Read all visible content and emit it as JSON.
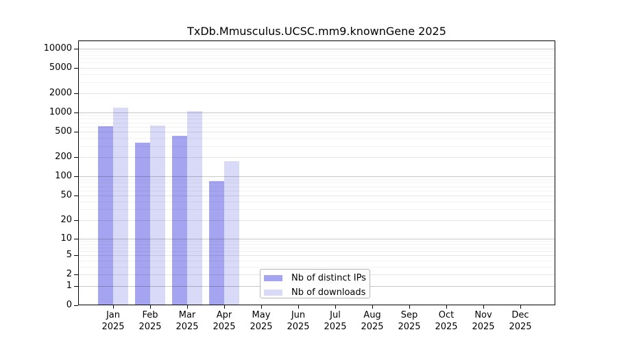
{
  "title": "TxDb.Mmusculus.UCSC.mm9.knownGene 2025",
  "chart_data": {
    "type": "bar",
    "title": "TxDb.Mmusculus.UCSC.mm9.knownGene 2025",
    "y_scale": "log10(1+x)",
    "ylim": [
      0,
      13300
    ],
    "grid": "horizontal, major and minor, drawn over bars",
    "legend_position": "inside lower-center",
    "categories": [
      "Jan",
      "Feb",
      "Mar",
      "Apr",
      "May",
      "Jun",
      "Jul",
      "Aug",
      "Sep",
      "Oct",
      "Nov",
      "Dec"
    ],
    "category_year": "2025",
    "y_ticks": [
      10000,
      5000,
      2000,
      1000,
      500,
      200,
      100,
      50,
      20,
      10,
      5,
      2,
      1,
      0
    ],
    "series": [
      {
        "name": "Nb of distinct IPs",
        "color": "#a4a4f0",
        "values": [
          610,
          336,
          430,
          86,
          null,
          null,
          null,
          null,
          null,
          null,
          null,
          null
        ]
      },
      {
        "name": "Nb of downloads",
        "color": "#d9d9f8",
        "values": [
          1200,
          623,
          1060,
          176,
          null,
          null,
          null,
          null,
          null,
          null,
          null,
          null
        ]
      }
    ]
  }
}
